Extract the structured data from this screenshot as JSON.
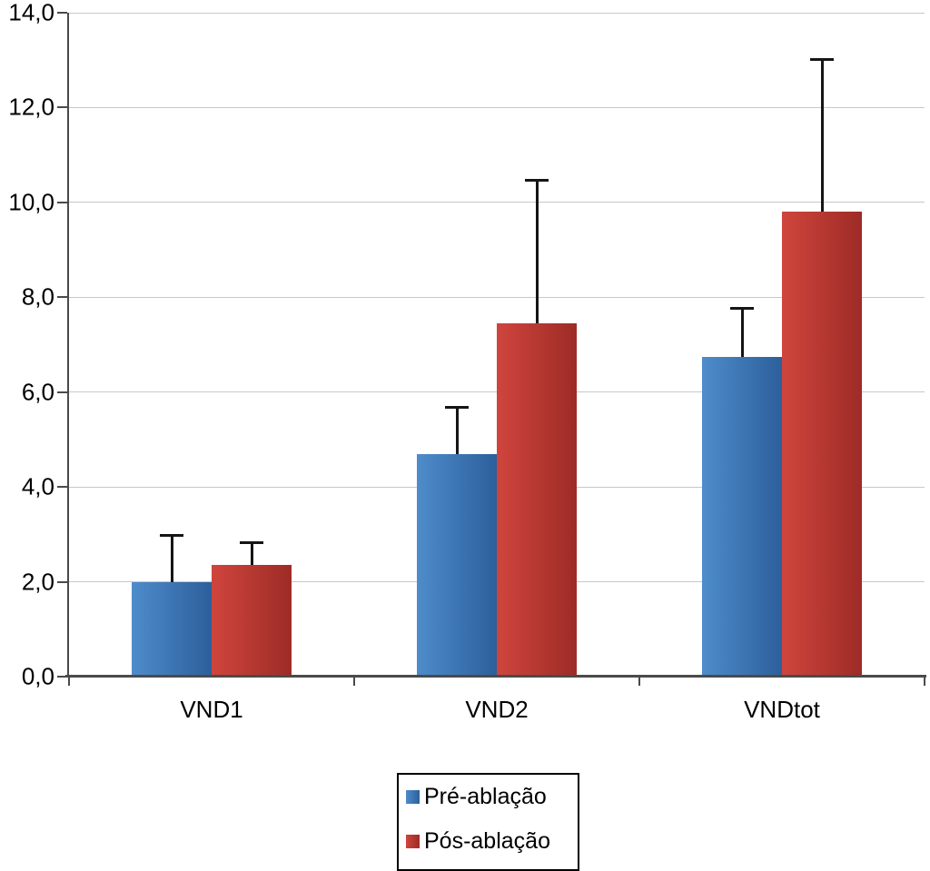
{
  "chart_data": {
    "type": "bar",
    "title": "",
    "xlabel": "",
    "ylabel": "",
    "categories": [
      "VND1",
      "VND2",
      "VNDtot"
    ],
    "series": [
      {
        "name": "Pré-ablação",
        "color_light": "#4e8ccb",
        "color_dark": "#2c5f9b",
        "values": [
          2.0,
          4.7,
          6.75
        ],
        "errors_plus": [
          1.0,
          1.0,
          1.05
        ]
      },
      {
        "name": "Pós-ablação",
        "color_light": "#cf453d",
        "color_dark": "#9e2b26",
        "values": [
          2.35,
          7.45,
          9.8
        ],
        "errors_plus": [
          0.5,
          3.05,
          3.25
        ]
      }
    ],
    "ylim": [
      0,
      14
    ],
    "ytick_step": 2,
    "ytick_labels": [
      "0,0",
      "2,0",
      "4,0",
      "6,0",
      "8,0",
      "10,0",
      "12,0",
      "14,0"
    ],
    "decimal_separator": ",",
    "grid": true,
    "error_bars": "upper",
    "legend_position": "bottom-center"
  },
  "legend": {
    "items": [
      {
        "label": "Pré-ablação"
      },
      {
        "label": "Pós-ablação"
      }
    ]
  }
}
